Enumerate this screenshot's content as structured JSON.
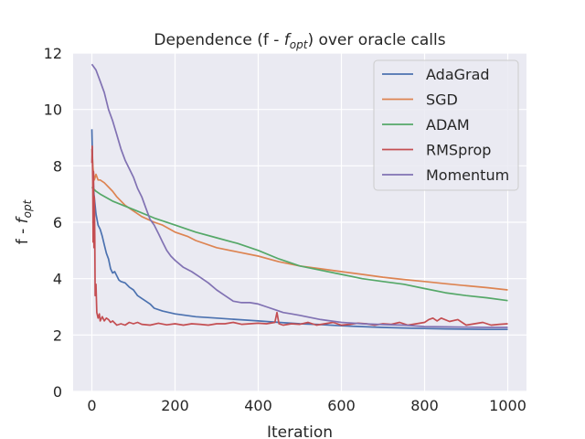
{
  "chart_data": {
    "type": "line",
    "title": "Dependence (f - f_opt) over oracle calls",
    "title_parts": {
      "pre": "Dependence (f - ",
      "sym": "f",
      "sub": "opt",
      "post": ") over oracle calls"
    },
    "xlabel": "Iteration",
    "ylabel": "f - f_opt",
    "ylabel_parts": {
      "pre": "f - ",
      "sym": "f",
      "sub": "opt"
    },
    "xlim": [
      -45,
      1045
    ],
    "ylim": [
      0,
      12
    ],
    "xticks": [
      0,
      200,
      400,
      600,
      800,
      1000
    ],
    "yticks": [
      0,
      2,
      4,
      6,
      8,
      10,
      12
    ],
    "xtick_labels": [
      "0",
      "200",
      "400",
      "600",
      "800",
      "1000"
    ],
    "ytick_labels": [
      "0",
      "2",
      "4",
      "6",
      "8",
      "10",
      "12"
    ],
    "grid": true,
    "background": "#eaeaf2",
    "legend_position": "top-right",
    "series": [
      {
        "name": "AdaGrad",
        "color": "#4c72b0",
        "x": [
          0,
          2,
          5,
          10,
          15,
          20,
          25,
          30,
          35,
          40,
          45,
          50,
          55,
          60,
          65,
          70,
          80,
          90,
          100,
          110,
          120,
          130,
          140,
          150,
          170,
          200,
          250,
          300,
          350,
          400,
          450,
          500,
          550,
          600,
          650,
          700,
          750,
          800,
          850,
          900,
          950,
          1000
        ],
        "y": [
          9.3,
          8.0,
          7.0,
          6.3,
          5.9,
          5.75,
          5.5,
          5.2,
          4.9,
          4.7,
          4.35,
          4.2,
          4.25,
          4.1,
          3.95,
          3.9,
          3.85,
          3.7,
          3.6,
          3.4,
          3.3,
          3.2,
          3.1,
          2.95,
          2.85,
          2.75,
          2.65,
          2.6,
          2.55,
          2.5,
          2.45,
          2.4,
          2.37,
          2.33,
          2.3,
          2.27,
          2.25,
          2.23,
          2.22,
          2.21,
          2.2,
          2.2
        ]
      },
      {
        "name": "SGD",
        "color": "#dd8452",
        "x": [
          0,
          3,
          6,
          10,
          15,
          20,
          30,
          40,
          50,
          60,
          80,
          100,
          120,
          150,
          170,
          200,
          230,
          250,
          300,
          350,
          400,
          450,
          500,
          550,
          600,
          650,
          700,
          750,
          800,
          850,
          900,
          950,
          1000
        ],
        "y": [
          8.6,
          7.9,
          7.5,
          7.7,
          7.5,
          7.5,
          7.4,
          7.25,
          7.1,
          6.9,
          6.6,
          6.4,
          6.2,
          6.0,
          5.9,
          5.65,
          5.5,
          5.35,
          5.1,
          4.95,
          4.8,
          4.6,
          4.45,
          4.35,
          4.25,
          4.15,
          4.05,
          3.97,
          3.9,
          3.82,
          3.75,
          3.68,
          3.6
        ]
      },
      {
        "name": "ADAM",
        "color": "#55a868",
        "x": [
          0,
          10,
          20,
          50,
          100,
          150,
          200,
          250,
          300,
          350,
          400,
          450,
          500,
          550,
          600,
          650,
          700,
          750,
          800,
          850,
          900,
          950,
          1000
        ],
        "y": [
          7.25,
          7.1,
          7.0,
          6.75,
          6.45,
          6.15,
          5.9,
          5.65,
          5.45,
          5.25,
          5.0,
          4.7,
          4.45,
          4.3,
          4.15,
          4.0,
          3.9,
          3.8,
          3.65,
          3.5,
          3.4,
          3.32,
          3.22
        ]
      },
      {
        "name": "RMSprop",
        "color": "#c44e52",
        "x": [
          0,
          1,
          2,
          3,
          4,
          5,
          6,
          7,
          8,
          10,
          12,
          15,
          18,
          20,
          25,
          30,
          35,
          40,
          45,
          50,
          60,
          70,
          80,
          90,
          100,
          110,
          120,
          140,
          160,
          180,
          200,
          220,
          240,
          260,
          280,
          300,
          320,
          340,
          360,
          380,
          400,
          420,
          440,
          445,
          450,
          460,
          480,
          500,
          520,
          540,
          560,
          580,
          600,
          620,
          640,
          660,
          680,
          700,
          720,
          740,
          760,
          780,
          800,
          810,
          820,
          830,
          840,
          860,
          880,
          900,
          920,
          940,
          960,
          980,
          1000
        ],
        "y": [
          8.1,
          8.7,
          7.5,
          5.3,
          7.8,
          5.1,
          6.9,
          5.5,
          3.4,
          3.8,
          2.8,
          2.6,
          2.75,
          2.5,
          2.65,
          2.5,
          2.6,
          2.55,
          2.45,
          2.5,
          2.35,
          2.4,
          2.35,
          2.45,
          2.4,
          2.45,
          2.38,
          2.35,
          2.42,
          2.36,
          2.4,
          2.35,
          2.4,
          2.38,
          2.35,
          2.4,
          2.4,
          2.45,
          2.38,
          2.4,
          2.42,
          2.4,
          2.45,
          2.8,
          2.4,
          2.35,
          2.4,
          2.38,
          2.45,
          2.35,
          2.4,
          2.45,
          2.35,
          2.38,
          2.42,
          2.4,
          2.35,
          2.4,
          2.38,
          2.45,
          2.35,
          2.4,
          2.45,
          2.55,
          2.6,
          2.5,
          2.6,
          2.48,
          2.55,
          2.35,
          2.4,
          2.45,
          2.35,
          2.38,
          2.4
        ]
      },
      {
        "name": "Momentum",
        "color": "#8172b3",
        "x": [
          0,
          10,
          20,
          30,
          40,
          50,
          60,
          70,
          80,
          90,
          100,
          110,
          120,
          130,
          140,
          150,
          160,
          170,
          180,
          190,
          200,
          220,
          240,
          260,
          280,
          300,
          320,
          340,
          360,
          380,
          400,
          420,
          440,
          460,
          480,
          500,
          550,
          600,
          650,
          700,
          750,
          800,
          850,
          900,
          950,
          1000
        ],
        "y": [
          11.6,
          11.4,
          11.0,
          10.6,
          10.0,
          9.6,
          9.1,
          8.6,
          8.2,
          7.9,
          7.6,
          7.2,
          6.9,
          6.5,
          6.1,
          5.9,
          5.6,
          5.3,
          5.0,
          4.8,
          4.65,
          4.4,
          4.25,
          4.05,
          3.85,
          3.6,
          3.4,
          3.2,
          3.15,
          3.15,
          3.1,
          3.0,
          2.9,
          2.8,
          2.75,
          2.7,
          2.55,
          2.45,
          2.4,
          2.37,
          2.35,
          2.3,
          2.29,
          2.28,
          2.27,
          2.27
        ]
      }
    ]
  }
}
